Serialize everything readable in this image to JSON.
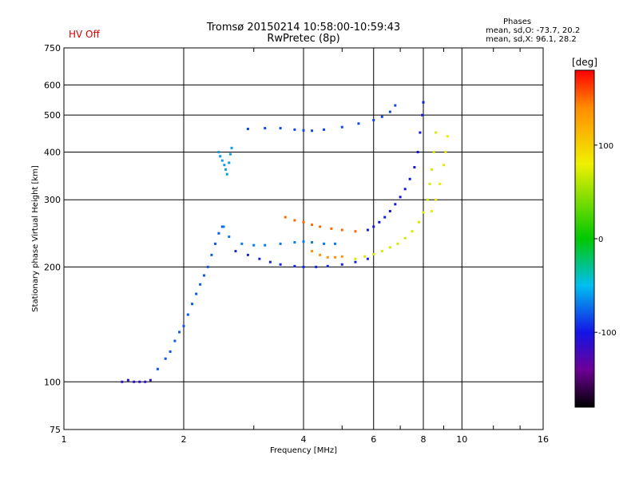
{
  "header": {
    "status": "HV Off",
    "title_line1": "Tromsø 20150214 10:58:00-10:59:43",
    "title_line2": "RwPretec (8p)",
    "stats_title": "Phases",
    "stats_o": "mean, sd,O: -73.7, 20.2",
    "stats_x": "mean, sd,X:  96.1, 28.2"
  },
  "colors": {
    "status": "#d40000",
    "grid": "#000000",
    "axis": "#000000"
  },
  "chart_data": {
    "type": "scatter",
    "xlabel": "Frequency [MHz]",
    "ylabel": "Stationary phase Virtual Height [km]",
    "x_scale": "log",
    "y_scale": "log",
    "xlim": [
      1,
      16
    ],
    "ylim": [
      75,
      750
    ],
    "x_ticks": [
      1,
      2,
      4,
      6,
      8,
      10,
      16
    ],
    "y_ticks": [
      75,
      100,
      200,
      300,
      400,
      500,
      600,
      750
    ],
    "x_grid": [
      2,
      4,
      6,
      8,
      10
    ],
    "y_grid": [
      100,
      200,
      300,
      400,
      500,
      600
    ],
    "colorbar": {
      "label": "[deg]",
      "range": [
        -180,
        180
      ],
      "ticks": [
        100,
        0,
        -100
      ],
      "colormap": "rainbow: black-purple-blue-cyan-green-yellow-orange-red"
    },
    "series": [
      {
        "phase": -110,
        "points": [
          [
            1.4,
            100
          ],
          [
            1.45,
            101
          ],
          [
            1.5,
            100
          ],
          [
            1.55,
            100
          ],
          [
            1.6,
            100
          ],
          [
            1.65,
            101
          ]
        ]
      },
      {
        "phase": -80,
        "points": [
          [
            1.72,
            108
          ],
          [
            1.8,
            115
          ],
          [
            1.85,
            120
          ],
          [
            1.9,
            128
          ],
          [
            1.95,
            135
          ],
          [
            2.0,
            140
          ],
          [
            2.05,
            150
          ],
          [
            2.1,
            160
          ],
          [
            2.15,
            170
          ],
          [
            2.2,
            180
          ],
          [
            2.25,
            190
          ],
          [
            2.3,
            200
          ],
          [
            2.35,
            215
          ],
          [
            2.4,
            230
          ],
          [
            2.45,
            245
          ],
          [
            2.5,
            255
          ]
        ]
      },
      {
        "phase": -60,
        "points": [
          [
            2.45,
            400
          ],
          [
            2.47,
            390
          ],
          [
            2.5,
            380
          ],
          [
            2.53,
            370
          ],
          [
            2.55,
            360
          ],
          [
            2.57,
            350
          ],
          [
            2.6,
            375
          ],
          [
            2.62,
            395
          ],
          [
            2.64,
            410
          ]
        ]
      },
      {
        "phase": -70,
        "points": [
          [
            2.52,
            255
          ],
          [
            2.6,
            240
          ],
          [
            2.8,
            230
          ],
          [
            3.0,
            228
          ],
          [
            3.2,
            228
          ],
          [
            3.5,
            230
          ],
          [
            3.8,
            232
          ],
          [
            4.0,
            233
          ],
          [
            4.2,
            232
          ],
          [
            4.5,
            230
          ],
          [
            4.8,
            230
          ]
        ]
      },
      {
        "phase": -95,
        "points": [
          [
            2.7,
            220
          ],
          [
            2.9,
            215
          ],
          [
            3.1,
            210
          ],
          [
            3.3,
            206
          ],
          [
            3.5,
            203
          ],
          [
            3.8,
            201
          ],
          [
            4.0,
            200
          ],
          [
            4.3,
            200
          ],
          [
            4.6,
            201
          ],
          [
            5.0,
            203
          ],
          [
            5.4,
            206
          ],
          [
            5.8,
            210
          ]
        ]
      },
      {
        "phase": -85,
        "points": [
          [
            2.9,
            460
          ],
          [
            3.2,
            462
          ],
          [
            3.5,
            462
          ],
          [
            3.8,
            458
          ],
          [
            4.0,
            456
          ],
          [
            4.2,
            455
          ],
          [
            4.5,
            458
          ],
          [
            5.0,
            465
          ],
          [
            5.5,
            475
          ],
          [
            6.0,
            485
          ],
          [
            6.3,
            495
          ],
          [
            6.6,
            510
          ],
          [
            6.8,
            530
          ]
        ]
      },
      {
        "phase": 150,
        "points": [
          [
            3.6,
            270
          ],
          [
            3.8,
            265
          ],
          [
            4.0,
            262
          ],
          [
            4.2,
            258
          ],
          [
            4.4,
            255
          ],
          [
            4.7,
            252
          ],
          [
            5.0,
            250
          ],
          [
            5.4,
            248
          ]
        ]
      },
      {
        "phase": 135,
        "points": [
          [
            4.2,
            220
          ],
          [
            4.4,
            215
          ],
          [
            4.6,
            212
          ],
          [
            4.8,
            212
          ],
          [
            5.0,
            213
          ]
        ]
      },
      {
        "phase": 70,
        "points": [
          [
            5.4,
            210
          ],
          [
            5.7,
            213
          ],
          [
            6.0,
            216
          ],
          [
            6.3,
            220
          ],
          [
            6.6,
            225
          ],
          [
            6.9,
            230
          ],
          [
            7.2,
            238
          ],
          [
            7.5,
            248
          ],
          [
            7.8,
            262
          ],
          [
            8.0,
            278
          ],
          [
            8.2,
            300
          ],
          [
            8.3,
            330
          ],
          [
            8.4,
            360
          ],
          [
            8.5,
            400
          ],
          [
            8.6,
            450
          ]
        ]
      },
      {
        "phase": -100,
        "points": [
          [
            5.8,
            250
          ],
          [
            6.0,
            255
          ],
          [
            6.2,
            262
          ],
          [
            6.4,
            270
          ],
          [
            6.6,
            280
          ],
          [
            6.8,
            292
          ],
          [
            7.0,
            305
          ],
          [
            7.2,
            320
          ],
          [
            7.4,
            340
          ],
          [
            7.6,
            365
          ],
          [
            7.75,
            400
          ],
          [
            7.85,
            450
          ],
          [
            7.95,
            500
          ],
          [
            8.0,
            540
          ]
        ]
      },
      {
        "phase": 85,
        "points": [
          [
            8.4,
            280
          ],
          [
            8.6,
            300
          ],
          [
            8.8,
            330
          ],
          [
            9.0,
            370
          ],
          [
            9.1,
            400
          ],
          [
            9.2,
            440
          ]
        ]
      }
    ]
  }
}
